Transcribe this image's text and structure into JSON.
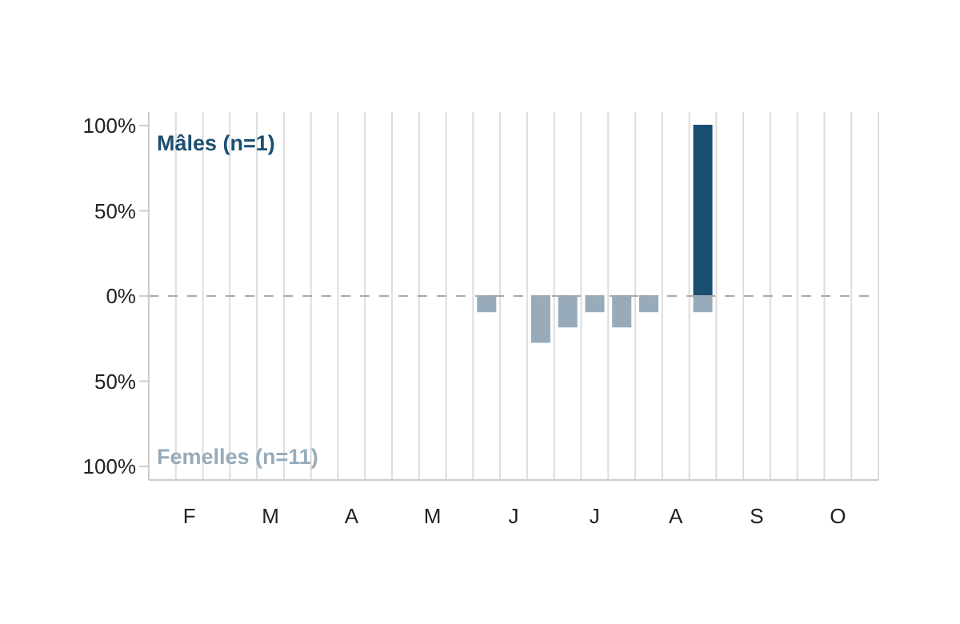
{
  "chart_data": {
    "type": "bar",
    "stacked": true,
    "categories": [
      null,
      "F",
      null,
      null,
      "M",
      null,
      null,
      "A",
      null,
      null,
      "M",
      null,
      null,
      "J",
      null,
      null,
      "J",
      null,
      null,
      "A",
      null,
      null,
      "S",
      null,
      null,
      "O",
      null
    ],
    "series": [
      {
        "name": "Mâles (n=1)",
        "color": "#1b4f72",
        "values": [
          null,
          null,
          null,
          null,
          null,
          null,
          null,
          null,
          null,
          null,
          null,
          null,
          null,
          null,
          null,
          null,
          null,
          null,
          null,
          null,
          100,
          null,
          null,
          null,
          null,
          null,
          null
        ]
      },
      {
        "name": "Femelles (n=11)",
        "color": "#97abba",
        "values": [
          null,
          null,
          null,
          null,
          null,
          null,
          null,
          null,
          null,
          null,
          null,
          null,
          -9,
          null,
          -27,
          -18,
          -9,
          -18,
          -9,
          null,
          -9,
          null,
          null,
          null,
          null,
          null,
          null
        ]
      }
    ],
    "ylim": [
      -108,
      108
    ],
    "yticks": [
      {
        "value": 100,
        "label": "100%"
      },
      {
        "value": 50,
        "label": "50%"
      },
      {
        "value": 0,
        "label": "0%"
      },
      {
        "value": -50,
        "label": "50%"
      },
      {
        "value": -100,
        "label": "100%"
      }
    ],
    "grid": "x",
    "legend": false,
    "ref_lines": [
      {
        "axis": "y",
        "value": 0,
        "line_style": "dashed",
        "color": "#aaaaaa"
      }
    ]
  }
}
